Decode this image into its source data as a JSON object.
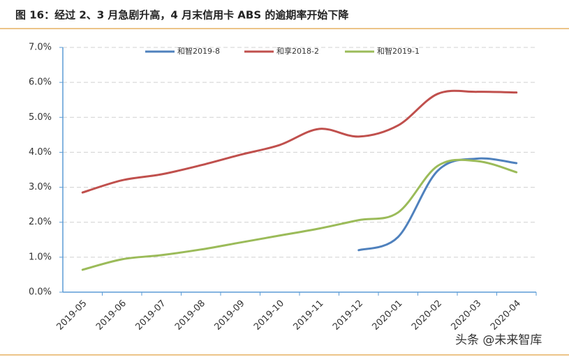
{
  "chart_data": {
    "type": "line",
    "title": "图 16：经过 2、3 月急剧升高，4 月末信用卡 ABS 的逾期率开始下降",
    "categories": [
      "2019-05",
      "2019-06",
      "2019-07",
      "2019-08",
      "2019-09",
      "2019-10",
      "2019-11",
      "2019-12",
      "2020-01",
      "2020-02",
      "2020-03",
      "2020-04"
    ],
    "series": [
      {
        "name": "和智2019-8",
        "color": "#4f81bd",
        "values": [
          null,
          null,
          null,
          null,
          null,
          null,
          null,
          1.2,
          1.58,
          3.47,
          3.82,
          3.69
        ]
      },
      {
        "name": "和享2018-2",
        "color": "#c0504d",
        "values": [
          2.85,
          3.2,
          3.37,
          3.63,
          3.93,
          4.21,
          4.67,
          4.45,
          4.77,
          5.67,
          5.73,
          5.71
        ]
      },
      {
        "name": "和智2019-1",
        "color": "#9bbb59",
        "values": [
          0.64,
          0.94,
          1.06,
          1.22,
          1.42,
          1.62,
          1.82,
          2.06,
          2.28,
          3.61,
          3.75,
          3.43
        ]
      }
    ],
    "ylim": [
      0,
      7
    ],
    "yticks": [
      {
        "value": 0,
        "label": "0.0%"
      },
      {
        "value": 1,
        "label": "1.0%"
      },
      {
        "value": 2,
        "label": "2.0%"
      },
      {
        "value": 3,
        "label": "3.0%"
      },
      {
        "value": 4,
        "label": "4.0%"
      },
      {
        "value": 5,
        "label": "5.0%"
      },
      {
        "value": 6,
        "label": "6.0%"
      },
      {
        "value": 7,
        "label": "7.0%"
      }
    ],
    "grid": true,
    "legend": "top"
  },
  "watermark": "头条 @未来智库"
}
